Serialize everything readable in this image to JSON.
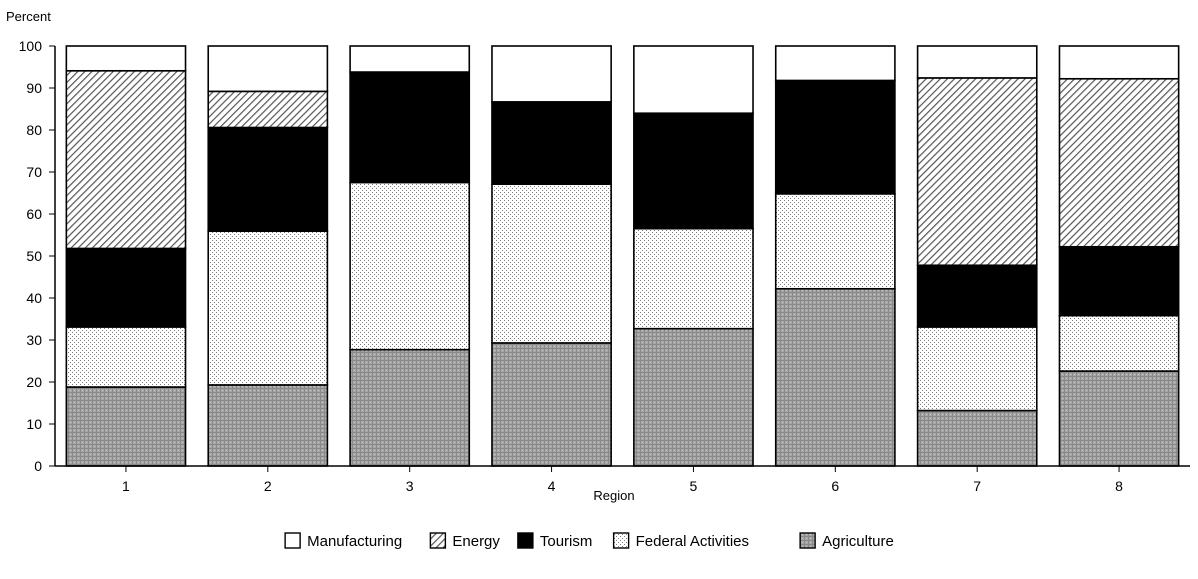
{
  "chart_data": {
    "type": "bar",
    "stacked": true,
    "ylabel": "Percent",
    "xlabel": "Region",
    "ylim": [
      0,
      100
    ],
    "yticks": [
      0,
      10,
      20,
      30,
      40,
      50,
      60,
      70,
      80,
      90,
      100
    ],
    "categories": [
      "1",
      "2",
      "3",
      "4",
      "5",
      "6",
      "7",
      "8"
    ],
    "grid": false,
    "legend_position": "bottom-center",
    "series": [
      {
        "name": "Agriculture",
        "pattern": "crosshatch-gray",
        "values": [
          18.8,
          19.3,
          27.7,
          29.3,
          32.7,
          42.2,
          13.2,
          22.6
        ]
      },
      {
        "name": "Federal Activities",
        "pattern": "dots",
        "values": [
          14.3,
          36.6,
          39.8,
          37.8,
          23.8,
          22.6,
          19.9,
          13.2
        ]
      },
      {
        "name": "Tourism",
        "pattern": "solid-black",
        "values": [
          18.7,
          24.7,
          26.3,
          19.6,
          27.5,
          27.0,
          14.7,
          16.4
        ]
      },
      {
        "name": "Energy",
        "pattern": "diagonal-hatch",
        "values": [
          42.3,
          8.6,
          0.0,
          0.0,
          0.0,
          0.0,
          44.6,
          40.0
        ]
      },
      {
        "name": "Manufacturing",
        "pattern": "white",
        "values": [
          5.9,
          10.8,
          6.2,
          13.3,
          16.0,
          8.2,
          7.6,
          7.8
        ]
      }
    ]
  }
}
